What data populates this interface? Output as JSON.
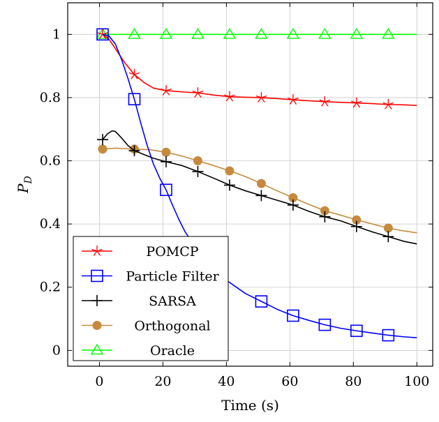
{
  "chart_data": {
    "type": "line",
    "xlabel": "Time (s)",
    "ylabel": "P",
    "ylabel_subscript": "D",
    "xlim": [
      -10,
      105
    ],
    "ylim": [
      -0.05,
      1.1
    ],
    "xticks": [
      0,
      20,
      40,
      60,
      80,
      100
    ],
    "yticks": [
      0,
      0.2,
      0.4,
      0.6,
      0.8,
      1
    ],
    "xtick_labels": [
      "0",
      "20",
      "40",
      "60",
      "80",
      "100"
    ],
    "ytick_labels": [
      "0",
      "0.2",
      "0.4",
      "0.6",
      "0.8",
      "1"
    ],
    "grid": true,
    "legend_position": "bottom-left",
    "series": [
      {
        "name": "POMCP",
        "color": "#ff0000",
        "marker": "star",
        "line": [
          [
            1,
            1.0
          ],
          [
            3,
            0.985
          ],
          [
            5,
            0.955
          ],
          [
            8,
            0.91
          ],
          [
            11,
            0.873
          ],
          [
            14,
            0.848
          ],
          [
            17,
            0.83
          ],
          [
            21,
            0.822
          ],
          [
            26,
            0.818
          ],
          [
            31,
            0.815
          ],
          [
            36,
            0.808
          ],
          [
            41,
            0.803
          ],
          [
            46,
            0.801
          ],
          [
            51,
            0.8
          ],
          [
            56,
            0.797
          ],
          [
            61,
            0.793
          ],
          [
            66,
            0.79
          ],
          [
            71,
            0.787
          ],
          [
            76,
            0.785
          ],
          [
            81,
            0.783
          ],
          [
            86,
            0.781
          ],
          [
            91,
            0.778
          ],
          [
            96,
            0.777
          ],
          [
            100,
            0.775
          ]
        ],
        "markers": [
          [
            1,
            1.0
          ],
          [
            11,
            0.873
          ],
          [
            21,
            0.822
          ],
          [
            31,
            0.815
          ],
          [
            41,
            0.803
          ],
          [
            51,
            0.8
          ],
          [
            61,
            0.793
          ],
          [
            71,
            0.787
          ],
          [
            81,
            0.783
          ],
          [
            91,
            0.778
          ]
        ]
      },
      {
        "name": "Particle Filter",
        "color": "#0000ff",
        "marker": "square",
        "line": [
          [
            1,
            1.0
          ],
          [
            3,
            0.995
          ],
          [
            5,
            0.97
          ],
          [
            7,
            0.92
          ],
          [
            9,
            0.86
          ],
          [
            11,
            0.795
          ],
          [
            13,
            0.72
          ],
          [
            15,
            0.65
          ],
          [
            17,
            0.59
          ],
          [
            19,
            0.545
          ],
          [
            21,
            0.508
          ],
          [
            23,
            0.46
          ],
          [
            25,
            0.415
          ],
          [
            27,
            0.375
          ],
          [
            30,
            0.33
          ],
          [
            33,
            0.29
          ],
          [
            36,
            0.255
          ],
          [
            41,
            0.215
          ],
          [
            46,
            0.18
          ],
          [
            51,
            0.155
          ],
          [
            56,
            0.13
          ],
          [
            61,
            0.11
          ],
          [
            66,
            0.095
          ],
          [
            71,
            0.081
          ],
          [
            76,
            0.07
          ],
          [
            81,
            0.062
          ],
          [
            86,
            0.055
          ],
          [
            91,
            0.048
          ],
          [
            96,
            0.043
          ],
          [
            100,
            0.04
          ]
        ],
        "markers": [
          [
            1,
            1.0
          ],
          [
            11,
            0.795
          ],
          [
            21,
            0.508
          ],
          [
            51,
            0.155
          ],
          [
            61,
            0.11
          ],
          [
            71,
            0.081
          ],
          [
            81,
            0.062
          ],
          [
            91,
            0.048
          ]
        ]
      },
      {
        "name": "SARSA",
        "color": "#000000",
        "marker": "plus",
        "line": [
          [
            1,
            0.667
          ],
          [
            2.5,
            0.685
          ],
          [
            4,
            0.695
          ],
          [
            5,
            0.693
          ],
          [
            7,
            0.672
          ],
          [
            9,
            0.648
          ],
          [
            11,
            0.632
          ],
          [
            14,
            0.62
          ],
          [
            17,
            0.608
          ],
          [
            21,
            0.597
          ],
          [
            26,
            0.585
          ],
          [
            31,
            0.566
          ],
          [
            36,
            0.545
          ],
          [
            41,
            0.523
          ],
          [
            46,
            0.505
          ],
          [
            51,
            0.49
          ],
          [
            56,
            0.475
          ],
          [
            61,
            0.46
          ],
          [
            66,
            0.44
          ],
          [
            71,
            0.423
          ],
          [
            76,
            0.41
          ],
          [
            81,
            0.392
          ],
          [
            86,
            0.375
          ],
          [
            91,
            0.36
          ],
          [
            96,
            0.345
          ],
          [
            100,
            0.337
          ]
        ],
        "markers": [
          [
            1,
            0.667
          ],
          [
            11,
            0.632
          ],
          [
            21,
            0.597
          ],
          [
            31,
            0.566
          ],
          [
            41,
            0.523
          ],
          [
            51,
            0.49
          ],
          [
            61,
            0.46
          ],
          [
            71,
            0.423
          ],
          [
            81,
            0.392
          ],
          [
            91,
            0.36
          ]
        ]
      },
      {
        "name": "Orthogonal",
        "color": "#c68a3e",
        "marker": "circle",
        "line": [
          [
            1,
            0.637
          ],
          [
            5,
            0.64
          ],
          [
            11,
            0.637
          ],
          [
            16,
            0.635
          ],
          [
            21,
            0.627
          ],
          [
            26,
            0.615
          ],
          [
            31,
            0.6
          ],
          [
            36,
            0.585
          ],
          [
            41,
            0.568
          ],
          [
            46,
            0.55
          ],
          [
            51,
            0.528
          ],
          [
            56,
            0.505
          ],
          [
            61,
            0.483
          ],
          [
            66,
            0.462
          ],
          [
            71,
            0.442
          ],
          [
            76,
            0.428
          ],
          [
            81,
            0.413
          ],
          [
            86,
            0.4
          ],
          [
            91,
            0.387
          ],
          [
            96,
            0.378
          ],
          [
            100,
            0.372
          ]
        ],
        "markers": [
          [
            1,
            0.637
          ],
          [
            11,
            0.637
          ],
          [
            21,
            0.627
          ],
          [
            31,
            0.6
          ],
          [
            41,
            0.568
          ],
          [
            51,
            0.528
          ],
          [
            61,
            0.483
          ],
          [
            71,
            0.442
          ],
          [
            81,
            0.413
          ],
          [
            91,
            0.387
          ]
        ]
      },
      {
        "name": "Oracle",
        "color": "#00ff00",
        "marker": "triangle",
        "line": [
          [
            1,
            1.0
          ],
          [
            100,
            1.0
          ]
        ],
        "markers": [
          [
            1,
            1.0
          ],
          [
            11,
            1.0
          ],
          [
            21,
            1.0
          ],
          [
            31,
            1.0
          ],
          [
            41,
            1.0
          ],
          [
            51,
            1.0
          ],
          [
            61,
            1.0
          ],
          [
            71,
            1.0
          ],
          [
            81,
            1.0
          ],
          [
            91,
            1.0
          ]
        ]
      }
    ]
  }
}
